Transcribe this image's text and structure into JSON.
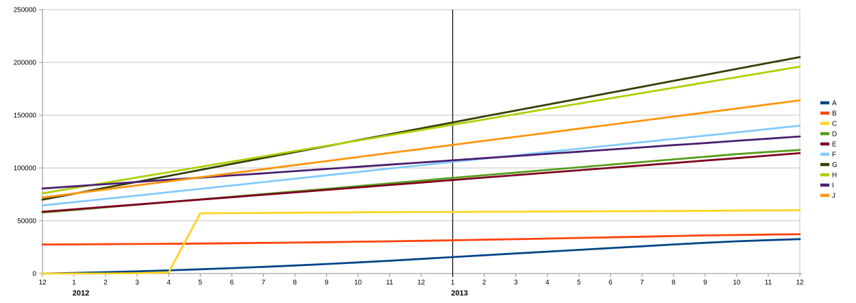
{
  "chart_data": {
    "type": "line",
    "title": "",
    "xlabel": "",
    "ylabel": "",
    "grid": "horizontal",
    "legend_position": "right",
    "x_axis": {
      "tick_labels": [
        "12",
        "1",
        "2",
        "3",
        "4",
        "5",
        "6",
        "7",
        "8",
        "9",
        "10",
        "11",
        "12",
        "1",
        "2",
        "3",
        "4",
        "5",
        "6",
        "7",
        "8",
        "9",
        "10",
        "11",
        "12"
      ],
      "year_labels": [
        {
          "text": "2012",
          "tick_index": 1
        },
        {
          "text": "2013",
          "tick_index": 13
        }
      ],
      "year_divider_tick_index": 13
    },
    "y_axis": {
      "min": 0,
      "max": 250000,
      "step": 50000,
      "tick_labels": [
        "0",
        "50000",
        "100000",
        "150000",
        "200000",
        "250000"
      ]
    },
    "colors": {
      "grid": "#c3c3c3",
      "axis": "#8e8e8e",
      "divider": "#000000",
      "background": "#ffffff"
    },
    "series": [
      {
        "name": "A",
        "color": "#004586",
        "values": [
          0,
          600,
          1300,
          2100,
          3000,
          4000,
          5100,
          6300,
          7600,
          9000,
          10500,
          12100,
          13800,
          15600,
          17300,
          19000,
          20700,
          22400,
          24100,
          25800,
          27500,
          29100,
          30500,
          31600,
          32600
        ]
      },
      {
        "name": "B",
        "color": "#FF420E",
        "values": [
          27500,
          27600,
          27800,
          28000,
          28200,
          28400,
          28700,
          29000,
          29300,
          29700,
          30100,
          30500,
          31000,
          31500,
          32000,
          32500,
          33100,
          33700,
          34300,
          34900,
          35500,
          36100,
          36500,
          36900,
          37300
        ]
      },
      {
        "name": "C",
        "color": "#FFD320",
        "values": [
          0,
          0,
          0,
          300,
          1200,
          57000,
          57200,
          57400,
          57600,
          57800,
          58000,
          58100,
          58300,
          58400,
          58500,
          58600,
          58700,
          58800,
          59000,
          59100,
          59200,
          59400,
          59600,
          59800,
          60000
        ]
      },
      {
        "name": "D",
        "color": "#579D1C",
        "values": [
          57800,
          60200,
          62700,
          65200,
          67700,
          70200,
          72700,
          75200,
          77700,
          80200,
          82800,
          85400,
          88000,
          90600,
          93100,
          95600,
          98100,
          100600,
          103100,
          105600,
          108100,
          110600,
          113100,
          115100,
          117000
        ]
      },
      {
        "name": "E",
        "color": "#7E0021",
        "values": [
          58500,
          60800,
          63100,
          65400,
          67700,
          70000,
          72300,
          74600,
          76900,
          79200,
          81500,
          83800,
          86200,
          88600,
          90900,
          93200,
          95500,
          97800,
          100100,
          102400,
          104700,
          107000,
          109300,
          111700,
          114000
        ]
      },
      {
        "name": "F",
        "color": "#83CAFF",
        "values": [
          64500,
          67600,
          70700,
          73800,
          77000,
          80200,
          83400,
          86600,
          89800,
          93000,
          96200,
          99400,
          102600,
          105800,
          108900,
          112000,
          115100,
          118200,
          121300,
          124400,
          127500,
          130600,
          133700,
          136900,
          140000
        ]
      },
      {
        "name": "G",
        "color": "#314004",
        "values": [
          70000,
          75600,
          81300,
          86900,
          92500,
          98100,
          103800,
          109400,
          115000,
          120600,
          126300,
          131900,
          137500,
          143100,
          148800,
          154400,
          160000,
          165600,
          171300,
          176900,
          182500,
          188100,
          193800,
          199400,
          205000
        ]
      },
      {
        "name": "H",
        "color": "#AECF00",
        "values": [
          76000,
          81000,
          86000,
          91000,
          96000,
          101000,
          106000,
          111000,
          116000,
          121000,
          126000,
          131000,
          136000,
          141000,
          146000,
          151000,
          156000,
          161000,
          166000,
          171000,
          176000,
          181000,
          186000,
          191000,
          196000
        ]
      },
      {
        "name": "I",
        "color": "#4B1F6F",
        "values": [
          80500,
          82600,
          84700,
          86700,
          88800,
          90800,
          92900,
          94900,
          97000,
          99000,
          101100,
          103100,
          105200,
          107200,
          109300,
          111300,
          113400,
          115400,
          117500,
          119500,
          121600,
          123600,
          125700,
          127700,
          129800
        ]
      },
      {
        "name": "J",
        "color": "#FF950E",
        "values": [
          72000,
          75800,
          79700,
          83500,
          87300,
          91200,
          95000,
          98800,
          102700,
          106500,
          110300,
          114200,
          118000,
          121800,
          125700,
          129500,
          133300,
          137200,
          141000,
          144800,
          148700,
          152500,
          156300,
          160200,
          164000
        ]
      }
    ],
    "legend": {
      "items": [
        "A",
        "B",
        "C",
        "D",
        "E",
        "F",
        "G",
        "H",
        "I",
        "J"
      ]
    }
  }
}
